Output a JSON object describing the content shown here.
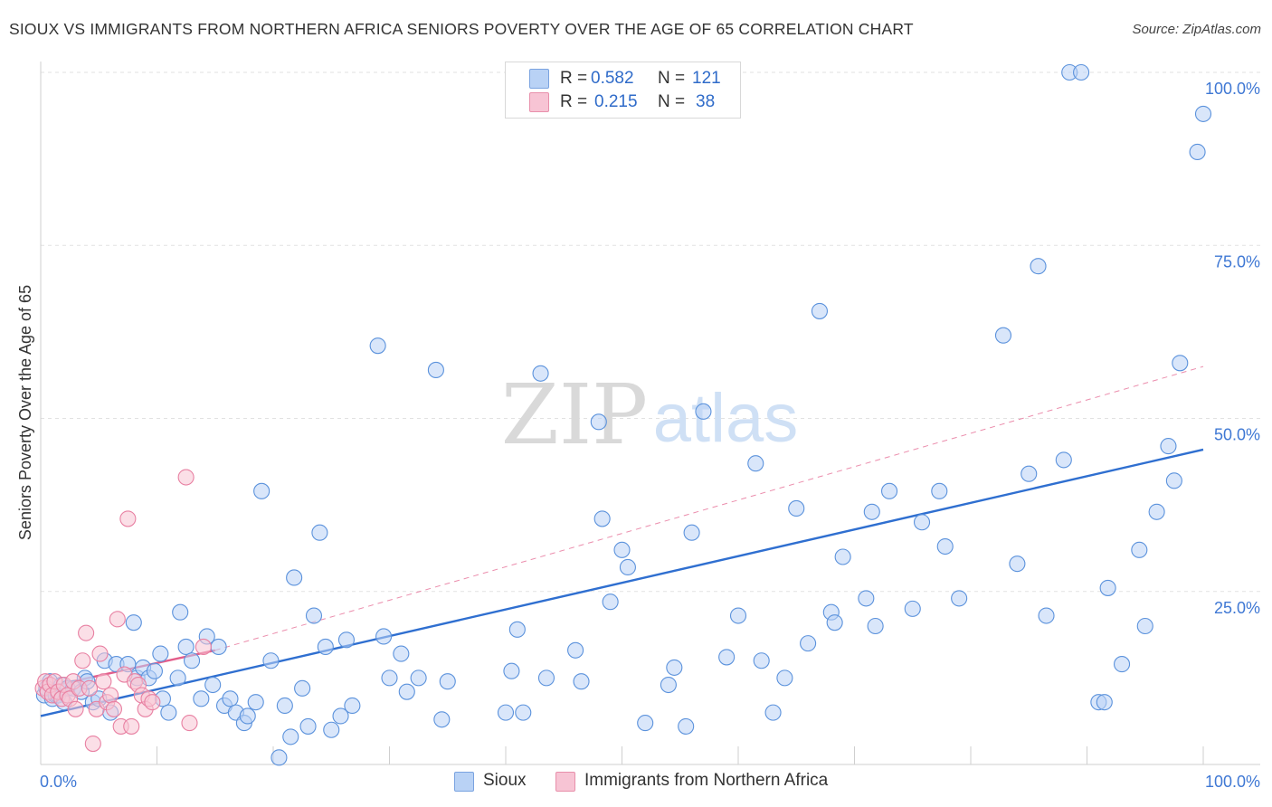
{
  "title": "SIOUX VS IMMIGRANTS FROM NORTHERN AFRICA SENIORS POVERTY OVER THE AGE OF 65 CORRELATION CHART",
  "source": "Source: ZipAtlas.com",
  "watermark": {
    "zip": "ZIP",
    "atlas": "atlas"
  },
  "legend_top": [
    {
      "r_label": "R =",
      "r_value": "0.582",
      "n_label": "N =",
      "n_value": "121",
      "color": "#b9d2f5"
    },
    {
      "r_label": "R =",
      "r_value": "0.215",
      "n_label": "N =",
      "n_value": "38",
      "color": "#f7c4d4"
    }
  ],
  "legend_bottom": [
    {
      "label": "Sioux",
      "color": "#b9d2f5"
    },
    {
      "label": "Immigrants from Northern Africa",
      "color": "#f7c4d4"
    }
  ],
  "chart_data": {
    "type": "scatter",
    "title": "SIOUX VS IMMIGRANTS FROM NORTHERN AFRICA SENIORS POVERTY OVER THE AGE OF 65 CORRELATION CHART",
    "xlabel": "",
    "ylabel": "Seniors Poverty Over the Age of 65",
    "xlim": [
      0,
      100
    ],
    "ylim": [
      0,
      100
    ],
    "x_tick_labels": [
      {
        "value": 0,
        "label": "0.0%"
      },
      {
        "value": 100,
        "label": "100.0%"
      }
    ],
    "y_tick_labels": [
      {
        "value": 25,
        "label": "25.0%"
      },
      {
        "value": 50,
        "label": "50.0%"
      },
      {
        "value": 75,
        "label": "75.0%"
      },
      {
        "value": 100,
        "label": "100.0%"
      }
    ],
    "grid": true,
    "series": [
      {
        "name": "Sioux",
        "color": "#5b92dc",
        "fill": "#b9d2f5",
        "trend": {
          "x0": 0,
          "y0": 7,
          "x1": 100,
          "y1": 45.5,
          "color": "#2f6fd0",
          "style": "solid"
        },
        "points": [
          [
            0.3,
            10
          ],
          [
            0.5,
            11
          ],
          [
            0.8,
            12
          ],
          [
            1,
            9.5
          ],
          [
            1.3,
            10
          ],
          [
            1.5,
            10
          ],
          [
            1.8,
            11.5
          ],
          [
            2,
            9
          ],
          [
            2.3,
            11
          ],
          [
            2.8,
            11
          ],
          [
            3.5,
            10.5
          ],
          [
            3.8,
            12.5
          ],
          [
            4,
            12
          ],
          [
            4.5,
            9
          ],
          [
            5,
            9.5
          ],
          [
            5.5,
            15
          ],
          [
            6,
            7.5
          ],
          [
            6.5,
            14.5
          ],
          [
            7.5,
            14.5
          ],
          [
            8,
            20.5
          ],
          [
            8.3,
            12.5
          ],
          [
            8.8,
            14
          ],
          [
            9.3,
            12.5
          ],
          [
            9.8,
            13.5
          ],
          [
            10.3,
            16
          ],
          [
            10.5,
            9.5
          ],
          [
            11,
            7.5
          ],
          [
            11.8,
            12.5
          ],
          [
            12,
            22
          ],
          [
            12.5,
            17
          ],
          [
            13,
            15
          ],
          [
            13.8,
            9.5
          ],
          [
            14.3,
            18.5
          ],
          [
            14.8,
            11.5
          ],
          [
            15.3,
            17
          ],
          [
            15.8,
            8.5
          ],
          [
            16.3,
            9.5
          ],
          [
            16.8,
            7.5
          ],
          [
            17.5,
            6
          ],
          [
            17.8,
            7
          ],
          [
            18.5,
            9
          ],
          [
            19,
            39.5
          ],
          [
            19.8,
            15
          ],
          [
            20.5,
            1
          ],
          [
            21,
            8.5
          ],
          [
            21.5,
            4
          ],
          [
            21.8,
            27
          ],
          [
            22.5,
            11
          ],
          [
            23,
            5.5
          ],
          [
            23.5,
            21.5
          ],
          [
            24,
            33.5
          ],
          [
            24.5,
            17
          ],
          [
            25,
            5
          ],
          [
            25.8,
            7
          ],
          [
            26.3,
            18
          ],
          [
            26.8,
            8.5
          ],
          [
            29,
            60.5
          ],
          [
            29.5,
            18.5
          ],
          [
            30,
            12.5
          ],
          [
            31,
            16
          ],
          [
            31.5,
            10.5
          ],
          [
            32.5,
            12.5
          ],
          [
            34,
            57
          ],
          [
            34.5,
            6.5
          ],
          [
            35,
            12
          ],
          [
            40,
            7.5
          ],
          [
            40.5,
            13.5
          ],
          [
            41,
            19.5
          ],
          [
            41.5,
            7.5
          ],
          [
            43,
            56.5
          ],
          [
            43.5,
            12.5
          ],
          [
            46,
            16.5
          ],
          [
            46.5,
            12
          ],
          [
            48,
            49.5
          ],
          [
            48.3,
            35.5
          ],
          [
            49,
            23.5
          ],
          [
            50,
            31
          ],
          [
            50.5,
            28.5
          ],
          [
            52,
            6
          ],
          [
            54,
            11.5
          ],
          [
            54.5,
            14
          ],
          [
            55.5,
            5.5
          ],
          [
            56,
            33.5
          ],
          [
            57,
            51
          ],
          [
            59,
            15.5
          ],
          [
            60,
            21.5
          ],
          [
            61.5,
            43.5
          ],
          [
            62,
            15
          ],
          [
            63,
            7.5
          ],
          [
            64,
            12.5
          ],
          [
            65,
            37
          ],
          [
            66,
            17.5
          ],
          [
            67,
            65.5
          ],
          [
            68,
            22
          ],
          [
            68.3,
            20.5
          ],
          [
            69,
            30
          ],
          [
            71,
            24
          ],
          [
            71.5,
            36.5
          ],
          [
            71.8,
            20
          ],
          [
            73,
            39.5
          ],
          [
            75,
            22.5
          ],
          [
            75.8,
            35
          ],
          [
            77.3,
            39.5
          ],
          [
            77.8,
            31.5
          ],
          [
            79,
            24
          ],
          [
            82.8,
            62
          ],
          [
            84,
            29
          ],
          [
            85,
            42
          ],
          [
            85.8,
            72
          ],
          [
            86.5,
            21.5
          ],
          [
            88,
            44
          ],
          [
            88.5,
            100
          ],
          [
            89.5,
            100
          ],
          [
            91,
            9
          ],
          [
            91.5,
            9
          ],
          [
            91.8,
            25.5
          ],
          [
            93,
            14.5
          ],
          [
            94.5,
            31
          ],
          [
            95,
            20
          ],
          [
            96,
            36.5
          ],
          [
            97,
            46
          ],
          [
            97.5,
            41
          ],
          [
            98,
            58
          ],
          [
            99.5,
            88.5
          ],
          [
            100,
            94
          ]
        ]
      },
      {
        "name": "Immigrants from Northern Africa",
        "color": "#e880a2",
        "fill": "#f7c4d4",
        "trend": {
          "x0": 0,
          "y0": 11,
          "x1": 15,
          "y1": 16.5,
          "color": "#e35d8a",
          "style": "solid",
          "dash_x1": 100,
          "dash_y1": 57.5
        },
        "points": [
          [
            0.2,
            11
          ],
          [
            0.4,
            12
          ],
          [
            0.6,
            10.5
          ],
          [
            0.8,
            11.5
          ],
          [
            1,
            10
          ],
          [
            1.2,
            12
          ],
          [
            1.5,
            10.5
          ],
          [
            1.8,
            9.5
          ],
          [
            2,
            11.5
          ],
          [
            2.3,
            10
          ],
          [
            2.5,
            9.5
          ],
          [
            2.8,
            12
          ],
          [
            3,
            8
          ],
          [
            3.3,
            11
          ],
          [
            3.6,
            15
          ],
          [
            3.9,
            19
          ],
          [
            4.2,
            11
          ],
          [
            4.5,
            3
          ],
          [
            4.8,
            8
          ],
          [
            5.1,
            16
          ],
          [
            5.4,
            12
          ],
          [
            5.7,
            9
          ],
          [
            6,
            10
          ],
          [
            6.3,
            8
          ],
          [
            6.6,
            21
          ],
          [
            6.9,
            5.5
          ],
          [
            7.2,
            13
          ],
          [
            7.5,
            35.5
          ],
          [
            7.8,
            5.5
          ],
          [
            8.1,
            12
          ],
          [
            8.4,
            11.5
          ],
          [
            8.7,
            10
          ],
          [
            9,
            8
          ],
          [
            9.3,
            9.5
          ],
          [
            9.6,
            9
          ],
          [
            12.5,
            41.5
          ],
          [
            12.8,
            6
          ],
          [
            14,
            17
          ]
        ]
      }
    ]
  }
}
